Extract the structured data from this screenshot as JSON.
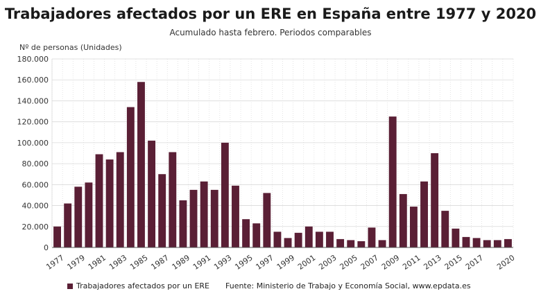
{
  "title": "Trabajadores afectados por un ERE en España entre 1977 y 2020",
  "subtitle": "Acumulado hasta febrero. Periodos comparables",
  "source": "Fuente: Ministerio de Trabajo y Economía Social, www.epdata.es",
  "colors": {
    "bar": "#5a1f35",
    "grid": "#d9d9d9",
    "axis": "#555555"
  },
  "chart_data": {
    "type": "bar",
    "ylabel": "Nº de personas (Unidades)",
    "ylim": [
      0,
      180000
    ],
    "yticks": [
      0,
      20000,
      40000,
      60000,
      80000,
      100000,
      120000,
      140000,
      160000,
      180000
    ],
    "ytick_labels": [
      "0",
      "20.000",
      "40.000",
      "60.000",
      "80.000",
      "100.000",
      "120.000",
      "140.000",
      "160.000",
      "180.000"
    ],
    "grid": true,
    "legend_position": "bottom-left",
    "categories": [
      "1977",
      "1978",
      "1979",
      "1980",
      "1981",
      "1982",
      "1983",
      "1984",
      "1985",
      "1986",
      "1987",
      "1988",
      "1989",
      "1990",
      "1991",
      "1992",
      "1993",
      "1994",
      "1995",
      "1996",
      "1997",
      "1998",
      "1999",
      "2000",
      "2001",
      "2002",
      "2003",
      "2004",
      "2005",
      "2006",
      "2007",
      "2008",
      "2009",
      "2010",
      "2011",
      "2012",
      "2013",
      "2014",
      "2015",
      "2016",
      "2017",
      "2018",
      "2019",
      "2020"
    ],
    "xtick_labels": [
      "1977",
      "1979",
      "1981",
      "1983",
      "1985",
      "1987",
      "1989",
      "1991",
      "1993",
      "1995",
      "1997",
      "1999",
      "2001",
      "2003",
      "2005",
      "2007",
      "2009",
      "2011",
      "2013",
      "2015",
      "2017",
      "2020"
    ],
    "series": [
      {
        "name": "Trabajadores afectados por un ERE",
        "values": [
          20000,
          42000,
          58000,
          62000,
          89000,
          84000,
          91000,
          134000,
          158000,
          102000,
          70000,
          91000,
          45000,
          55000,
          63000,
          55000,
          100000,
          59000,
          27000,
          23000,
          52000,
          15000,
          9000,
          14000,
          20000,
          15000,
          15000,
          8000,
          7000,
          6000,
          19000,
          7000,
          125000,
          51000,
          39000,
          63000,
          90000,
          35000,
          18000,
          10000,
          9000,
          7000,
          7000,
          8000
        ]
      }
    ]
  }
}
